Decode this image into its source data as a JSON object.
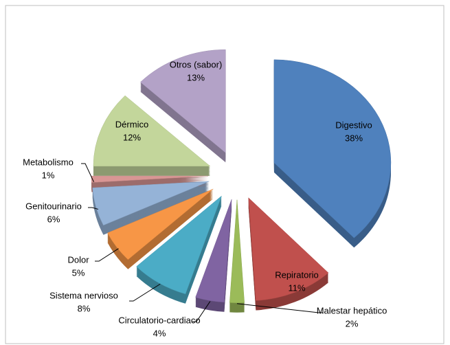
{
  "chart_data": {
    "type": "pie",
    "categories": [
      "Digestivo",
      "Repiratorio",
      "Malestar hepático",
      "Circulatorio-cardiaco",
      "Sistema nervioso",
      "Dolor",
      "Genitourinario",
      "Metabolismo",
      "Dérmico",
      "Otros (sabor)"
    ],
    "values": [
      38,
      11,
      2,
      4,
      8,
      5,
      6,
      1,
      12,
      13
    ],
    "value_labels": [
      "38%",
      "11%",
      "2%",
      "4%",
      "8%",
      "5%",
      "6%",
      "1%",
      "12%",
      "13%"
    ],
    "colors": [
      "#4f81bd",
      "#c0504d",
      "#9bbb59",
      "#8064a2",
      "#4bacc6",
      "#f79646",
      "#95b3d7",
      "#d99694",
      "#c3d69b",
      "#b3a2c7"
    ]
  }
}
